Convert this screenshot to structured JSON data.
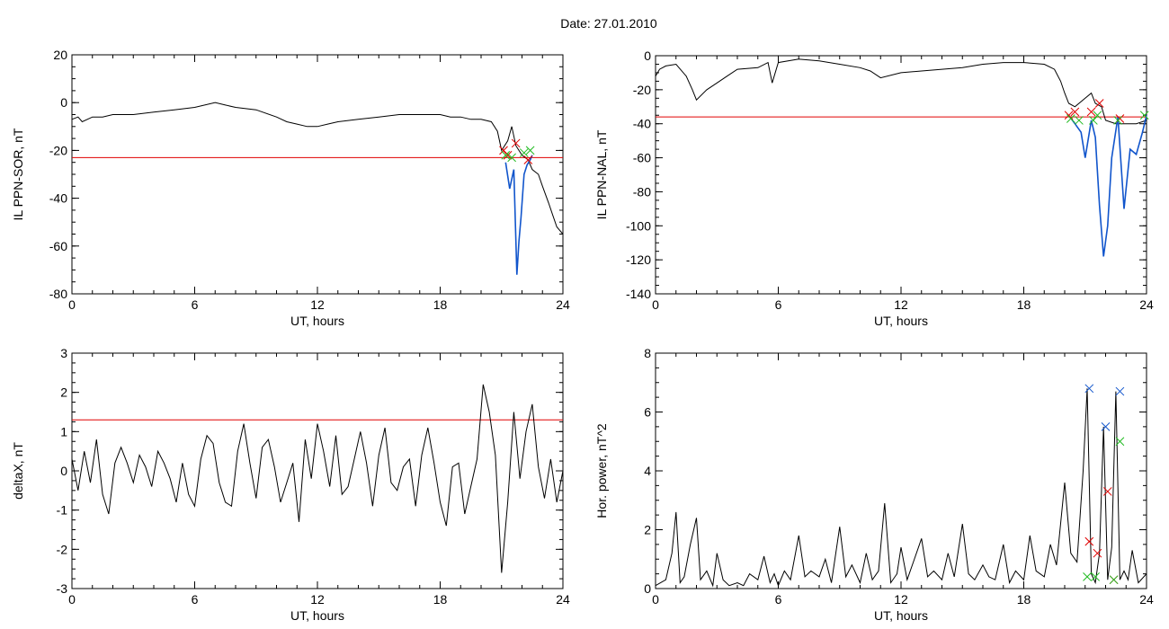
{
  "title": "Date:  27.01.2010",
  "chart_data": [
    {
      "type": "line",
      "ylabel": "IL PPN-SOR, nT",
      "xlabel": "UT, hours",
      "xlim": [
        0,
        24
      ],
      "ylim": [
        -80,
        20
      ],
      "xticks": [
        "0",
        "6",
        "12",
        "18",
        "24"
      ],
      "yticks": [
        "20",
        "0",
        "-20",
        "-40",
        "-60",
        "-80"
      ],
      "ytick_values": [
        20,
        0,
        -20,
        -40,
        -60,
        -80
      ],
      "threshold": -23,
      "series": [
        {
          "color": "#000000",
          "x": [
            0,
            0.3,
            0.5,
            1,
            1.5,
            2,
            3,
            4,
            5,
            6,
            7,
            7.5,
            8,
            9,
            10,
            10.5,
            11,
            11.5,
            12,
            12.5,
            13,
            14,
            15,
            16,
            17,
            18,
            18.5,
            19,
            19.5,
            20,
            20.5,
            20.8,
            21,
            21.3,
            21.5,
            21.7,
            22,
            22.3,
            22.5,
            22.8,
            23,
            23.3,
            23.5,
            23.7,
            24
          ],
          "y": [
            -7,
            -6,
            -8,
            -6,
            -6,
            -5,
            -5,
            -4,
            -3,
            -2,
            0,
            -1,
            -2,
            -3,
            -6,
            -8,
            -9,
            -10,
            -10,
            -9,
            -8,
            -7,
            -6,
            -5,
            -5,
            -5,
            -6,
            -6,
            -7,
            -7,
            -8,
            -12,
            -20,
            -16,
            -10,
            -18,
            -22,
            -24,
            -28,
            -30,
            -35,
            -42,
            -47,
            -52,
            -55
          ]
        },
        {
          "color": "#1155cc",
          "x": [
            21.2,
            21.4,
            21.6,
            21.75,
            21.85,
            21.95,
            22.1,
            22.25,
            22.4,
            22.5
          ],
          "y": [
            -25,
            -36,
            -28,
            -72,
            -58,
            -48,
            -30,
            -26,
            -24,
            -22
          ]
        }
      ],
      "markers_red": [
        [
          21.1,
          -20
        ],
        [
          21.7,
          -17
        ],
        [
          22.3,
          -24
        ],
        [
          21.3,
          -22
        ]
      ],
      "markers_green": [
        [
          21.2,
          -22
        ],
        [
          22.1,
          -21
        ],
        [
          22.4,
          -20
        ],
        [
          21.5,
          -23
        ]
      ]
    },
    {
      "type": "line",
      "ylabel": "IL PPN-NAL, nT",
      "xlabel": "UT, hours",
      "xlim": [
        0,
        24
      ],
      "ylim": [
        -140,
        0
      ],
      "xticks": [
        "0",
        "6",
        "12",
        "18",
        "24"
      ],
      "yticks": [
        "0",
        "-20",
        "-40",
        "-60",
        "-80",
        "-100",
        "-120",
        "-140"
      ],
      "ytick_values": [
        0,
        -20,
        -40,
        -60,
        -80,
        -100,
        -120,
        -140
      ],
      "threshold": -36,
      "series": [
        {
          "color": "#000000",
          "x": [
            0,
            0.2,
            0.5,
            1,
            1.5,
            1.8,
            2,
            2.5,
            3,
            3.5,
            4,
            5,
            5.5,
            5.7,
            6,
            7,
            8,
            9,
            10,
            10.5,
            11,
            12,
            13,
            14,
            15,
            16,
            17,
            18,
            19,
            19.5,
            19.8,
            20,
            20.2,
            20.5,
            21,
            21.3,
            21.5,
            21.8,
            22,
            22.5,
            23,
            23.5,
            24
          ],
          "y": [
            -12,
            -8,
            -6,
            -5,
            -12,
            -20,
            -26,
            -20,
            -16,
            -12,
            -8,
            -7,
            -4,
            -16,
            -4,
            -2,
            -3,
            -5,
            -7,
            -9,
            -13,
            -10,
            -9,
            -8,
            -7,
            -5,
            -4,
            -4,
            -5,
            -8,
            -15,
            -22,
            -28,
            -30,
            -25,
            -22,
            -28,
            -30,
            -38,
            -40,
            -40,
            -40,
            -38
          ]
        },
        {
          "color": "#1155cc",
          "x": [
            20.2,
            20.5,
            20.8,
            21,
            21.3,
            21.5,
            21.7,
            21.9,
            22.1,
            22.3,
            22.6,
            22.9,
            23.2,
            23.5,
            23.8,
            24
          ],
          "y": [
            -35,
            -40,
            -45,
            -60,
            -38,
            -48,
            -88,
            -118,
            -100,
            -60,
            -36,
            -90,
            -55,
            -58,
            -45,
            -35
          ]
        }
      ],
      "markers_red": [
        [
          20.2,
          -35
        ],
        [
          20.5,
          -33
        ],
        [
          21.3,
          -33
        ],
        [
          21.7,
          -28
        ],
        [
          22.7,
          -37
        ]
      ],
      "markers_green": [
        [
          20.3,
          -37
        ],
        [
          20.7,
          -38
        ],
        [
          21.4,
          -38
        ],
        [
          21.6,
          -35
        ],
        [
          22.6,
          -38
        ],
        [
          23.9,
          -35
        ]
      ]
    },
    {
      "type": "line",
      "ylabel": "deltaX, nT",
      "xlabel": "UT, hours",
      "xlim": [
        0,
        24
      ],
      "ylim": [
        -3,
        3
      ],
      "xticks": [
        "0",
        "6",
        "12",
        "18",
        "24"
      ],
      "yticks": [
        "3",
        "2",
        "1",
        "0",
        "-1",
        "-2",
        "-3"
      ],
      "ytick_values": [
        3,
        2,
        1,
        0,
        -1,
        -2,
        -3
      ],
      "threshold": 1.3,
      "series": [
        {
          "color": "#000000",
          "x": [
            0,
            0.3,
            0.6,
            0.9,
            1.2,
            1.5,
            1.8,
            2.1,
            2.4,
            2.7,
            3,
            3.3,
            3.6,
            3.9,
            4.2,
            4.5,
            4.8,
            5.1,
            5.4,
            5.7,
            6,
            6.3,
            6.6,
            6.9,
            7.2,
            7.5,
            7.8,
            8.1,
            8.4,
            8.7,
            9,
            9.3,
            9.6,
            9.9,
            10.2,
            10.5,
            10.8,
            11.1,
            11.4,
            11.7,
            12,
            12.3,
            12.6,
            12.9,
            13.2,
            13.5,
            13.8,
            14.1,
            14.4,
            14.7,
            15,
            15.3,
            15.6,
            15.9,
            16.2,
            16.5,
            16.8,
            17.1,
            17.4,
            17.7,
            18,
            18.3,
            18.6,
            18.9,
            19.2,
            19.5,
            19.8,
            20.1,
            20.4,
            20.7,
            21,
            21.3,
            21.6,
            21.9,
            22.2,
            22.5,
            22.8,
            23.1,
            23.4,
            23.7,
            24
          ],
          "y": [
            0.3,
            -0.5,
            0.5,
            -0.3,
            0.8,
            -0.6,
            -1.1,
            0.2,
            0.6,
            0.2,
            -0.3,
            0.4,
            0.1,
            -0.4,
            0.5,
            0.2,
            -0.2,
            -0.8,
            0.2,
            -0.6,
            -0.9,
            0.3,
            0.9,
            0.7,
            -0.3,
            -0.8,
            -0.9,
            0.5,
            1.2,
            0.2,
            -0.7,
            0.6,
            0.8,
            0.1,
            -0.8,
            -0.3,
            0.2,
            -1.3,
            0.8,
            -0.2,
            1.2,
            0.5,
            -0.4,
            0.9,
            -0.6,
            -0.4,
            0.3,
            1.0,
            0.2,
            -0.9,
            0.4,
            1.1,
            -0.3,
            -0.5,
            0.1,
            0.3,
            -0.9,
            0.4,
            1.1,
            0.2,
            -0.8,
            -1.4,
            0.1,
            0.2,
            -1.1,
            -0.4,
            0.3,
            2.2,
            1.5,
            0.4,
            -2.6,
            -0.8,
            1.5,
            -0.2,
            1.0,
            1.7,
            0.1,
            -0.7,
            0.3,
            -0.8,
            0.0
          ]
        }
      ]
    },
    {
      "type": "line",
      "ylabel": "Hor. power, nT^2",
      "xlabel": "UT, hours",
      "xlim": [
        0,
        24
      ],
      "ylim": [
        0,
        8
      ],
      "xticks": [
        "0",
        "6",
        "12",
        "18",
        "24"
      ],
      "yticks": [
        "8",
        "6",
        "4",
        "2",
        "0"
      ],
      "ytick_values": [
        8,
        6,
        4,
        2,
        0
      ],
      "series": [
        {
          "color": "#000000",
          "x": [
            0,
            0.5,
            0.8,
            1,
            1.2,
            1.4,
            1.7,
            2,
            2.2,
            2.5,
            2.8,
            3,
            3.3,
            3.6,
            4,
            4.3,
            4.6,
            5,
            5.3,
            5.6,
            5.8,
            6,
            6.3,
            6.6,
            7,
            7.3,
            7.6,
            8,
            8.3,
            8.6,
            9,
            9.3,
            9.6,
            10,
            10.3,
            10.6,
            10.9,
            11.2,
            11.5,
            11.8,
            12,
            12.3,
            12.6,
            13,
            13.3,
            13.6,
            14,
            14.3,
            14.6,
            15,
            15.3,
            15.6,
            16,
            16.3,
            16.6,
            17,
            17.3,
            17.6,
            18,
            18.3,
            18.6,
            19,
            19.3,
            19.6,
            20,
            20.3,
            20.6,
            20.9,
            21.1,
            21.3,
            21.5,
            21.7,
            21.9,
            22.1,
            22.3,
            22.5,
            22.7,
            22.9,
            23.1,
            23.3,
            23.6,
            24
          ],
          "y": [
            0.1,
            0.3,
            1.2,
            2.6,
            0.2,
            0.4,
            1.5,
            2.4,
            0.3,
            0.6,
            0.1,
            1.2,
            0.3,
            0.1,
            0.2,
            0.1,
            0.5,
            0.3,
            1.1,
            0.2,
            0.5,
            0.1,
            0.6,
            0.3,
            1.8,
            0.4,
            0.6,
            0.4,
            1.0,
            0.2,
            2.1,
            0.4,
            0.8,
            0.2,
            1.2,
            0.3,
            0.6,
            2.9,
            0.2,
            0.5,
            1.4,
            0.3,
            0.9,
            1.7,
            0.4,
            0.6,
            0.3,
            1.2,
            0.4,
            2.2,
            0.5,
            0.3,
            0.8,
            0.4,
            0.3,
            1.5,
            0.2,
            0.6,
            0.3,
            1.8,
            0.6,
            0.4,
            1.5,
            0.8,
            3.6,
            1.2,
            0.9,
            4.0,
            6.8,
            0.5,
            0.2,
            1.2,
            5.5,
            0.3,
            1.4,
            6.7,
            0.3,
            0.6,
            0.3,
            1.3,
            0.2,
            0.5
          ]
        }
      ],
      "markers_blue": [
        [
          21.2,
          6.8
        ],
        [
          22.0,
          5.5
        ],
        [
          22.7,
          6.7
        ]
      ],
      "markers_red": [
        [
          21.2,
          1.6
        ],
        [
          21.6,
          1.2
        ],
        [
          22.1,
          3.3
        ],
        [
          22.4,
          0.3
        ]
      ],
      "markers_green": [
        [
          21.1,
          0.4
        ],
        [
          21.5,
          0.4
        ],
        [
          22.4,
          0.3
        ],
        [
          22.7,
          5.0
        ]
      ]
    }
  ]
}
